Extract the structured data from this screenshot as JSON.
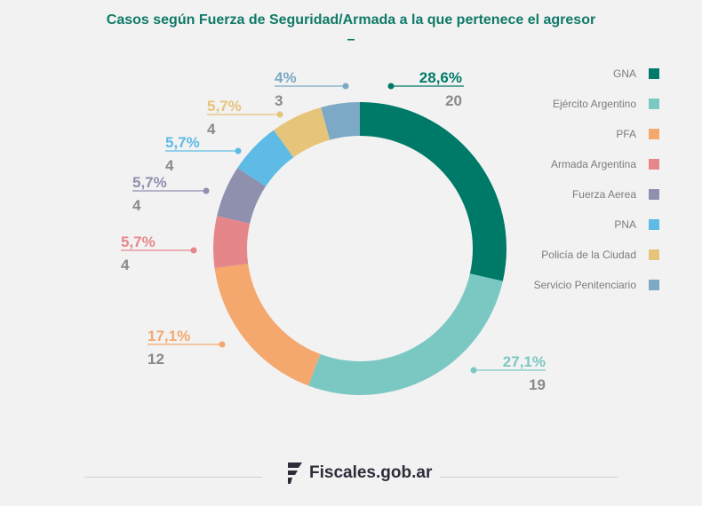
{
  "title": "Casos según Fuerza de Seguridad/Armada a la que pertenece el agresor",
  "title_dash": "–",
  "brand": "Fiscales.gob.ar",
  "chart_data": {
    "type": "pie",
    "donut": true,
    "title": "Casos según Fuerza de Seguridad/Armada a la que pertenece el agresor",
    "legend_position": "right",
    "slices": [
      {
        "label": "GNA",
        "value": 20,
        "percent": "28,6%",
        "color": "#007a68"
      },
      {
        "label": "Ejército Argentino",
        "value": 19,
        "percent": "27,1%",
        "color": "#7bc8c3"
      },
      {
        "label": "PFA",
        "value": 12,
        "percent": "17,1%",
        "color": "#f4a86e"
      },
      {
        "label": "Armada Argentina",
        "value": 4,
        "percent": "5,7%",
        "color": "#e5878a"
      },
      {
        "label": "Fuerza Aerea",
        "value": 4,
        "percent": "5,7%",
        "color": "#8f8fae"
      },
      {
        "label": "PNA",
        "value": 4,
        "percent": "5,7%",
        "color": "#5dbbe6"
      },
      {
        "label": "Policía de la Ciudad",
        "value": 4,
        "percent": "5,7%",
        "color": "#e6c47a"
      },
      {
        "label": "Servicio Penitenciario",
        "value": 3,
        "percent": "4%",
        "color": "#7ba9c6"
      }
    ]
  }
}
